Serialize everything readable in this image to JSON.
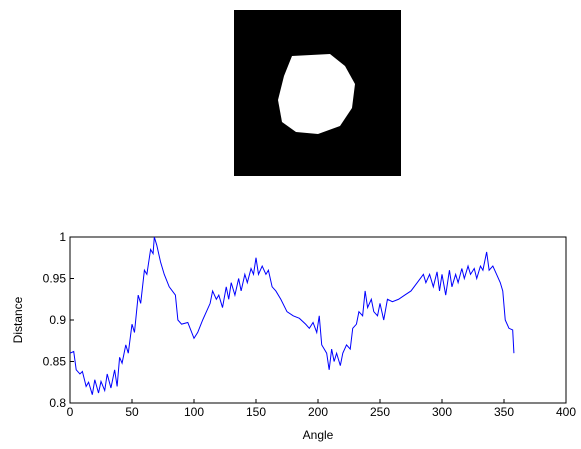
{
  "chart_data": {
    "type": "line",
    "x_label": "Angle",
    "y_label": "Distance",
    "xlim": [
      0,
      400
    ],
    "ylim": [
      0.8,
      1
    ],
    "xticks": [
      0,
      50,
      100,
      150,
      200,
      250,
      300,
      350,
      400
    ],
    "yticks": [
      0.8,
      0.85,
      0.9,
      0.95,
      1
    ],
    "grid": false,
    "x": [
      0,
      3,
      5,
      8,
      10,
      13,
      15,
      18,
      20,
      23,
      25,
      28,
      30,
      33,
      36,
      38,
      40,
      42,
      45,
      47,
      50,
      52,
      55,
      57,
      60,
      62,
      65,
      67,
      68,
      70,
      73,
      76,
      80,
      85,
      87,
      90,
      95,
      100,
      103,
      107,
      110,
      113,
      115,
      118,
      120,
      123,
      126,
      128,
      130,
      133,
      136,
      138,
      141,
      143,
      146,
      148,
      150,
      152,
      155,
      158,
      160,
      163,
      166,
      170,
      175,
      180,
      185,
      190,
      193,
      196,
      199,
      201,
      203,
      205,
      207,
      209,
      211,
      213,
      215,
      218,
      220,
      223,
      226,
      228,
      231,
      233,
      236,
      238,
      240,
      243,
      245,
      248,
      250,
      253,
      256,
      260,
      265,
      270,
      275,
      280,
      285,
      287,
      290,
      293,
      296,
      298,
      300,
      303,
      306,
      308,
      311,
      313,
      316,
      318,
      321,
      323,
      326,
      328,
      331,
      333,
      336,
      338,
      341,
      344,
      347,
      349,
      351,
      354,
      357,
      358
    ],
    "series": [
      {
        "name": "Distance",
        "color": "#0000ff",
        "values": [
          0.86,
          0.862,
          0.84,
          0.835,
          0.838,
          0.82,
          0.825,
          0.81,
          0.828,
          0.812,
          0.826,
          0.815,
          0.835,
          0.818,
          0.84,
          0.82,
          0.855,
          0.848,
          0.87,
          0.86,
          0.895,
          0.885,
          0.93,
          0.92,
          0.96,
          0.955,
          0.985,
          0.98,
          1.0,
          0.99,
          0.97,
          0.955,
          0.94,
          0.93,
          0.9,
          0.895,
          0.897,
          0.878,
          0.885,
          0.9,
          0.91,
          0.92,
          0.935,
          0.925,
          0.93,
          0.915,
          0.94,
          0.925,
          0.945,
          0.93,
          0.95,
          0.935,
          0.955,
          0.945,
          0.962,
          0.955,
          0.975,
          0.955,
          0.965,
          0.955,
          0.96,
          0.94,
          0.935,
          0.925,
          0.91,
          0.905,
          0.902,
          0.895,
          0.89,
          0.897,
          0.885,
          0.905,
          0.87,
          0.865,
          0.86,
          0.84,
          0.865,
          0.85,
          0.86,
          0.845,
          0.86,
          0.87,
          0.865,
          0.89,
          0.895,
          0.91,
          0.905,
          0.935,
          0.915,
          0.925,
          0.91,
          0.905,
          0.92,
          0.9,
          0.925,
          0.922,
          0.925,
          0.93,
          0.935,
          0.945,
          0.955,
          0.945,
          0.955,
          0.94,
          0.958,
          0.935,
          0.955,
          0.93,
          0.96,
          0.94,
          0.955,
          0.945,
          0.962,
          0.95,
          0.965,
          0.955,
          0.962,
          0.95,
          0.965,
          0.96,
          0.982,
          0.96,
          0.965,
          0.955,
          0.945,
          0.935,
          0.9,
          0.89,
          0.888,
          0.86
        ]
      }
    ]
  }
}
